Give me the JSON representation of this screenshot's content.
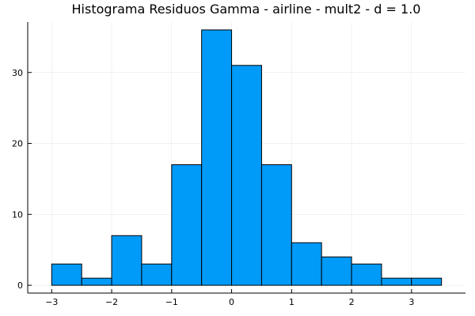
{
  "chart_data": {
    "type": "bar",
    "title": "Histograma Residuos Gamma - airline - mult2 - d = 1.0",
    "xlabel": "",
    "ylabel": "",
    "bin_edges": [
      -3.0,
      -2.5,
      -2.0,
      -1.5,
      -1.0,
      -0.5,
      0.0,
      0.5,
      1.0,
      1.5,
      2.0,
      2.5,
      3.0,
      3.5
    ],
    "values": [
      3,
      1,
      7,
      3,
      17,
      36,
      31,
      17,
      6,
      4,
      3,
      1,
      1
    ],
    "xlim": [
      -3.4,
      3.9
    ],
    "ylim": [
      -1.1,
      37.1
    ],
    "x_ticks": [
      -3,
      -2,
      -1,
      0,
      1,
      2,
      3
    ],
    "x_tick_labels": [
      "−3",
      "−2",
      "−1",
      "0",
      "1",
      "2",
      "3"
    ],
    "y_ticks": [
      0,
      10,
      20,
      30
    ],
    "y_tick_labels": [
      "0",
      "10",
      "20",
      "30"
    ],
    "grid": true,
    "legend": "none",
    "bar_color": "#009af9",
    "edge_color": "#000000"
  }
}
